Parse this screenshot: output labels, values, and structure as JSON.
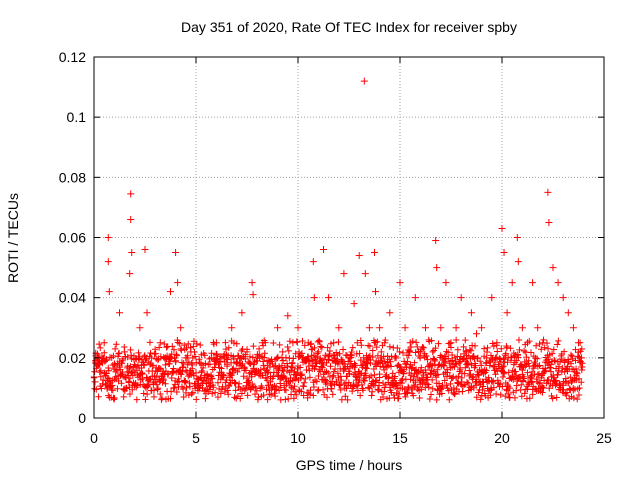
{
  "chart_data": {
    "type": "scatter",
    "title": "Day 351 of 2020, Rate Of TEC Index for receiver spby",
    "xlabel": "GPS time / hours",
    "ylabel": "ROTI / TECUs",
    "xlim": [
      0,
      25
    ],
    "ylim": [
      0,
      0.12
    ],
    "xticks": [
      0,
      5,
      10,
      15,
      20,
      25
    ],
    "xtick_labels": [
      "0",
      "5",
      "10",
      "15",
      "20",
      "25"
    ],
    "yticks": [
      0,
      0.02,
      0.04,
      0.06,
      0.08,
      0.1,
      0.12
    ],
    "ytick_labels": [
      "0",
      "0.02",
      "0.04",
      "0.06",
      "0.08",
      "0.1",
      "0.12"
    ],
    "grid": true,
    "marker": "+",
    "marker_color": "#ff0000",
    "series": [
      {
        "name": "ROTI",
        "x": [
          0.05,
          0.25,
          0.5,
          0.7,
          0.7,
          0.75,
          1.0,
          1.25,
          1.5,
          1.75,
          1.8,
          1.8,
          1.85,
          2.0,
          2.25,
          2.5,
          2.6,
          2.75,
          3.0,
          3.25,
          3.5,
          3.75,
          4.0,
          4.1,
          4.25,
          4.5,
          4.75,
          5.0,
          5.25,
          5.5,
          5.75,
          6.0,
          6.25,
          6.5,
          6.75,
          7.0,
          7.25,
          7.5,
          7.75,
          7.8,
          8.0,
          8.25,
          8.5,
          8.75,
          9.0,
          9.25,
          9.5,
          9.75,
          10.0,
          10.25,
          10.5,
          10.75,
          10.8,
          11.0,
          11.25,
          11.5,
          11.75,
          12.0,
          12.25,
          12.5,
          12.75,
          13.0,
          13.25,
          13.3,
          13.5,
          13.75,
          13.8,
          14.0,
          14.25,
          14.5,
          14.75,
          15.0,
          15.25,
          15.5,
          15.75,
          16.0,
          16.25,
          16.5,
          16.75,
          16.8,
          17.0,
          17.25,
          17.5,
          17.75,
          18.0,
          18.25,
          18.5,
          18.75,
          19.0,
          19.25,
          19.5,
          19.75,
          20.0,
          20.1,
          20.25,
          20.5,
          20.75,
          20.8,
          21.0,
          21.25,
          21.5,
          21.75,
          22.0,
          22.25,
          22.3,
          22.5,
          22.75,
          23.0,
          23.25,
          23.5,
          23.75,
          23.9
        ],
        "y": [
          0.012,
          0.02,
          0.025,
          0.06,
          0.052,
          0.042,
          0.018,
          0.035,
          0.022,
          0.048,
          0.066,
          0.0745,
          0.055,
          0.015,
          0.03,
          0.056,
          0.035,
          0.018,
          0.012,
          0.025,
          0.02,
          0.042,
          0.055,
          0.045,
          0.03,
          0.02,
          0.022,
          0.015,
          0.018,
          0.012,
          0.02,
          0.025,
          0.015,
          0.02,
          0.03,
          0.018,
          0.035,
          0.022,
          0.045,
          0.041,
          0.02,
          0.025,
          0.015,
          0.018,
          0.03,
          0.022,
          0.034,
          0.025,
          0.03,
          0.02,
          0.025,
          0.052,
          0.04,
          0.022,
          0.056,
          0.04,
          0.025,
          0.03,
          0.048,
          0.02,
          0.038,
          0.054,
          0.112,
          0.048,
          0.03,
          0.055,
          0.042,
          0.03,
          0.025,
          0.035,
          0.02,
          0.045,
          0.03,
          0.025,
          0.04,
          0.022,
          0.03,
          0.018,
          0.059,
          0.05,
          0.03,
          0.045,
          0.025,
          0.03,
          0.04,
          0.022,
          0.035,
          0.028,
          0.03,
          0.02,
          0.04,
          0.025,
          0.063,
          0.055,
          0.035,
          0.045,
          0.06,
          0.052,
          0.03,
          0.025,
          0.045,
          0.03,
          0.025,
          0.075,
          0.065,
          0.05,
          0.045,
          0.04,
          0.035,
          0.03,
          0.025,
          0.02
        ]
      }
    ]
  }
}
